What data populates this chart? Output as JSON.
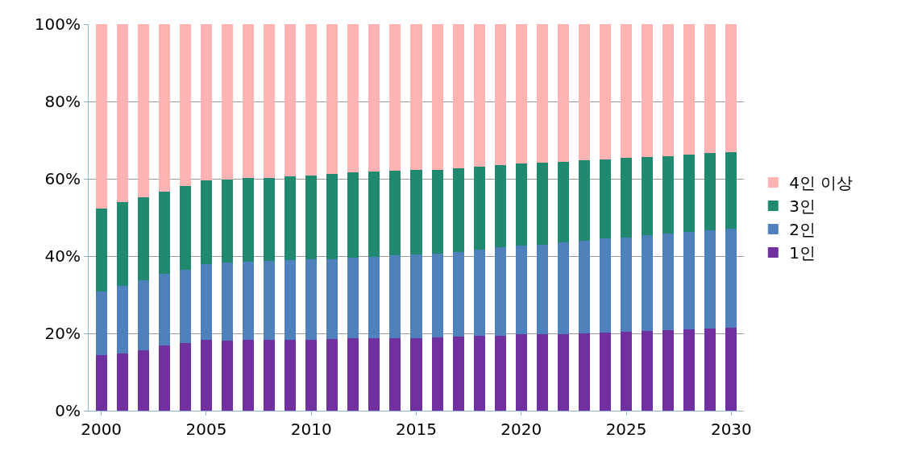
{
  "chart_data": {
    "type": "bar",
    "stacked": true,
    "x": [
      2000,
      2001,
      2002,
      2003,
      2004,
      2005,
      2006,
      2007,
      2008,
      2009,
      2010,
      2011,
      2012,
      2013,
      2014,
      2015,
      2016,
      2017,
      2018,
      2019,
      2020,
      2021,
      2022,
      2023,
      2024,
      2025,
      2026,
      2027,
      2028,
      2029,
      2030
    ],
    "xlim": [
      1999.4,
      2030.6
    ],
    "xticks": [
      2000,
      2005,
      2010,
      2015,
      2020,
      2025,
      2030
    ],
    "ylim": [
      0,
      100
    ],
    "yticks": [
      {
        "value": 0,
        "label": "0%"
      },
      {
        "value": 20,
        "label": "20%"
      },
      {
        "value": 40,
        "label": "40%"
      },
      {
        "value": 60,
        "label": "60%"
      },
      {
        "value": 80,
        "label": "80%"
      },
      {
        "value": 100,
        "label": "100%"
      }
    ],
    "grid": "y",
    "legend": "right",
    "series": [
      {
        "name": "1인",
        "color": "#7030a0",
        "values": [
          14.5,
          15,
          15.8,
          17,
          17.7,
          18.5,
          18.3,
          18.4,
          18.4,
          18.5,
          18.4,
          18.6,
          18.8,
          18.8,
          18.8,
          18.9,
          19.1,
          19.2,
          19.4,
          19.5,
          19.8,
          19.9,
          20.0,
          20.1,
          20.4,
          20.6,
          20.8,
          21.0,
          21.1,
          21.4,
          21.6
        ]
      },
      {
        "name": "2인",
        "color": "#4f81bd",
        "values": [
          16.5,
          17.5,
          18.0,
          18.5,
          18.8,
          19.5,
          20.2,
          20.2,
          20.4,
          20.5,
          20.8,
          20.7,
          20.8,
          21.2,
          21.5,
          21.6,
          21.7,
          22.0,
          22.4,
          22.8,
          23.0,
          23.2,
          23.6,
          23.9,
          24.2,
          24.4,
          24.7,
          25.0,
          25.3,
          25.4,
          25.6
        ]
      },
      {
        "name": "3인",
        "color": "#1f8a70",
        "values": [
          21.5,
          21.5,
          21.5,
          21.3,
          21.8,
          21.7,
          21.5,
          21.7,
          21.6,
          21.7,
          21.8,
          22.0,
          22.1,
          21.9,
          21.8,
          21.8,
          21.7,
          21.6,
          21.4,
          21.3,
          21.2,
          21.2,
          20.9,
          20.8,
          20.6,
          20.5,
          20.3,
          20.0,
          19.9,
          19.9,
          19.8
        ]
      },
      {
        "name": "4인 이상",
        "color": "#ffb3b3",
        "values": [
          47.5,
          46,
          44.7,
          43.2,
          41.7,
          40.3,
          40,
          39.7,
          39.6,
          39.3,
          39,
          38.7,
          38.3,
          38.1,
          37.9,
          37.7,
          37.5,
          37.2,
          36.8,
          36.4,
          36,
          35.7,
          35.5,
          35.2,
          34.8,
          34.5,
          34.2,
          34,
          33.7,
          33.3,
          33
        ]
      }
    ]
  }
}
